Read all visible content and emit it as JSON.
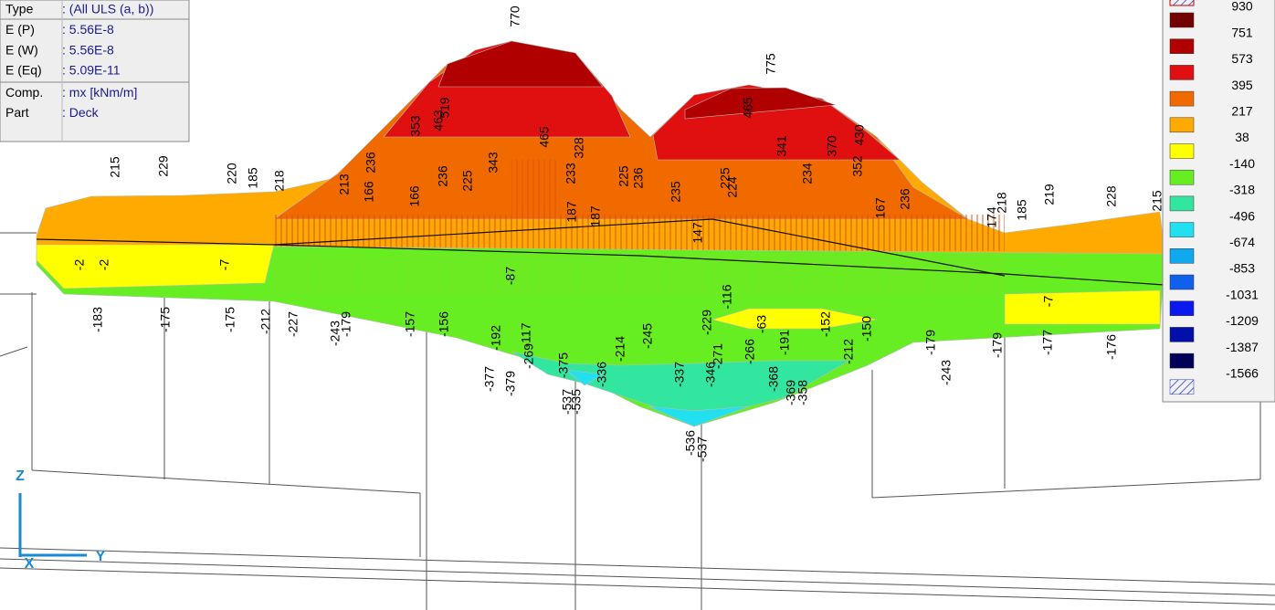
{
  "info_panel": {
    "rows": [
      {
        "key": "Type",
        "value": ": (All ULS  (a, b))"
      },
      {
        "key": "E (P)",
        "value": ": 5.56E-8"
      },
      {
        "key": "E (W)",
        "value": ": 5.56E-8"
      },
      {
        "key": "E (Eq)",
        "value": ": 5.09E-11"
      },
      {
        "key": "Comp.",
        "value": ": mx [kNm/m]"
      },
      {
        "key": "Part",
        "value": ": Deck"
      }
    ]
  },
  "legend": {
    "entries": [
      {
        "label": "930",
        "color": "#730000"
      },
      {
        "label": "751",
        "color": "#b00000"
      },
      {
        "label": "573",
        "color": "#e01010"
      },
      {
        "label": "395",
        "color": "#f06a00"
      },
      {
        "label": "217",
        "color": "#ffaa00"
      },
      {
        "label": "38",
        "color": "#ffff00"
      },
      {
        "label": "-140",
        "color": "#66ee22"
      },
      {
        "label": "-318",
        "color": "#33e6a0"
      },
      {
        "label": "-496",
        "color": "#22e0f0"
      },
      {
        "label": "-674",
        "color": "#10a8ee"
      },
      {
        "label": "-853",
        "color": "#1060ee"
      },
      {
        "label": "-1031",
        "color": "#0a1aee"
      },
      {
        "label": "-1209",
        "color": "#0010a8"
      },
      {
        "label": "-1387",
        "color": "#000058"
      },
      {
        "label": "-1566"
      }
    ]
  },
  "plot": {
    "labels": [
      "770",
      "775",
      "519",
      "353",
      "463",
      "465",
      "343",
      "236",
      "225",
      "328",
      "465",
      "430",
      "370",
      "352",
      "341",
      "215",
      "229",
      "220",
      "185",
      "218",
      "213",
      "236",
      "166",
      "166",
      "187",
      "187",
      "233",
      "225",
      "236",
      "235",
      "147",
      "225",
      "224",
      "234",
      "167",
      "236",
      "174",
      "218",
      "185",
      "219",
      "228",
      "215",
      "-2",
      "-2",
      "-7",
      "-87",
      "-116",
      "-7",
      "-183",
      "-175",
      "-175",
      "-212",
      "-227",
      "-243",
      "-179",
      "-157",
      "-156",
      "-192",
      "-117",
      "-269",
      "-214",
      "-245",
      "-229",
      "-271",
      "-63",
      "-266",
      "-191",
      "-152",
      "-212",
      "-150",
      "-179",
      "-243",
      "-179",
      "-177",
      "-176",
      "-377",
      "-379",
      "-375",
      "-336",
      "-337",
      "-346",
      "-368",
      "-369",
      "-358",
      "-537",
      "-535",
      "-536",
      "-537"
    ]
  },
  "axes_triad": {
    "z": "Z",
    "y": "Y",
    "x": "X"
  }
}
